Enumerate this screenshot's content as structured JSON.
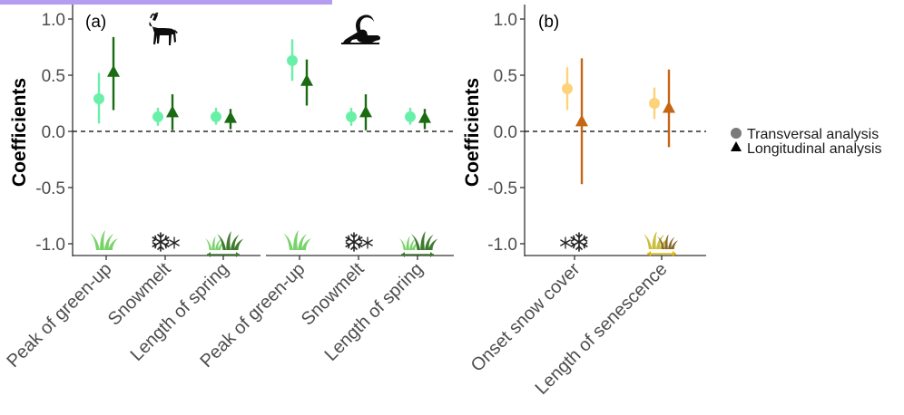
{
  "colors": {
    "top_strip": "#b49cf0",
    "axis": "#333333",
    "light_green": "#69f0a8",
    "dark_green": "#1a6b12",
    "light_orange": "#fcd27a",
    "dark_orange": "#c46613",
    "legend_grey": "#7a7a7a",
    "grass_green": "#7ad36a",
    "grass_dark": "#3f7b2f",
    "grass_yellow": "#c9bf3f"
  },
  "legend": {
    "transversal": "Transversal analysis",
    "longitudinal": "Longitudinal analysis"
  },
  "chart_data": [
    {
      "type": "scatter",
      "panel_label": "(a)",
      "ylabel": "Coefficients",
      "ylim": [
        -1.1,
        1.1
      ],
      "yticks": [
        "1.0",
        "0.5",
        "0.0",
        "-0.5",
        "-1.0"
      ],
      "reference_line": 0,
      "groups": [
        "chamois-icon",
        "ibex-icon"
      ],
      "categories": [
        "Peak of green-up",
        "Snowmelt",
        "Length of spring",
        "Peak of green-up",
        "Snowmelt",
        "Length of spring"
      ],
      "category_icons": [
        "grass-icon",
        "snow-icon",
        "grass-length-icon",
        "grass-icon",
        "snow-icon",
        "grass-length-icon"
      ],
      "series": [
        {
          "key": "transversal",
          "marker": "circle",
          "values": [
            0.29,
            0.13,
            0.13,
            0.63,
            0.13,
            0.13
          ],
          "lower": [
            0.07,
            0.05,
            0.06,
            0.45,
            0.05,
            0.06
          ],
          "upper": [
            0.52,
            0.21,
            0.21,
            0.82,
            0.21,
            0.21
          ]
        },
        {
          "key": "longitudinal",
          "marker": "triangle",
          "values": [
            0.53,
            0.17,
            0.12,
            0.45,
            0.17,
            0.12
          ],
          "lower": [
            0.19,
            0.01,
            0.02,
            0.23,
            0.01,
            0.02
          ],
          "upper": [
            0.84,
            0.33,
            0.2,
            0.64,
            0.33,
            0.2
          ]
        }
      ]
    },
    {
      "type": "scatter",
      "panel_label": "(b)",
      "ylabel": "Coefficients",
      "ylim": [
        -1.1,
        1.1
      ],
      "yticks": [
        "1.0",
        "0.5",
        "0.0",
        "-0.5",
        "-1.0"
      ],
      "reference_line": 0,
      "categories": [
        "Onset snow cover",
        "Length of senescence"
      ],
      "category_icons": [
        "snow-icon",
        "grass-senescence-icon"
      ],
      "series": [
        {
          "key": "transversal",
          "marker": "circle",
          "values": [
            0.38,
            0.25
          ],
          "lower": [
            0.19,
            0.11
          ],
          "upper": [
            0.57,
            0.39
          ]
        },
        {
          "key": "longitudinal",
          "marker": "triangle",
          "values": [
            0.09,
            0.21
          ],
          "lower": [
            -0.47,
            -0.14
          ],
          "upper": [
            0.65,
            0.55
          ]
        }
      ]
    }
  ]
}
